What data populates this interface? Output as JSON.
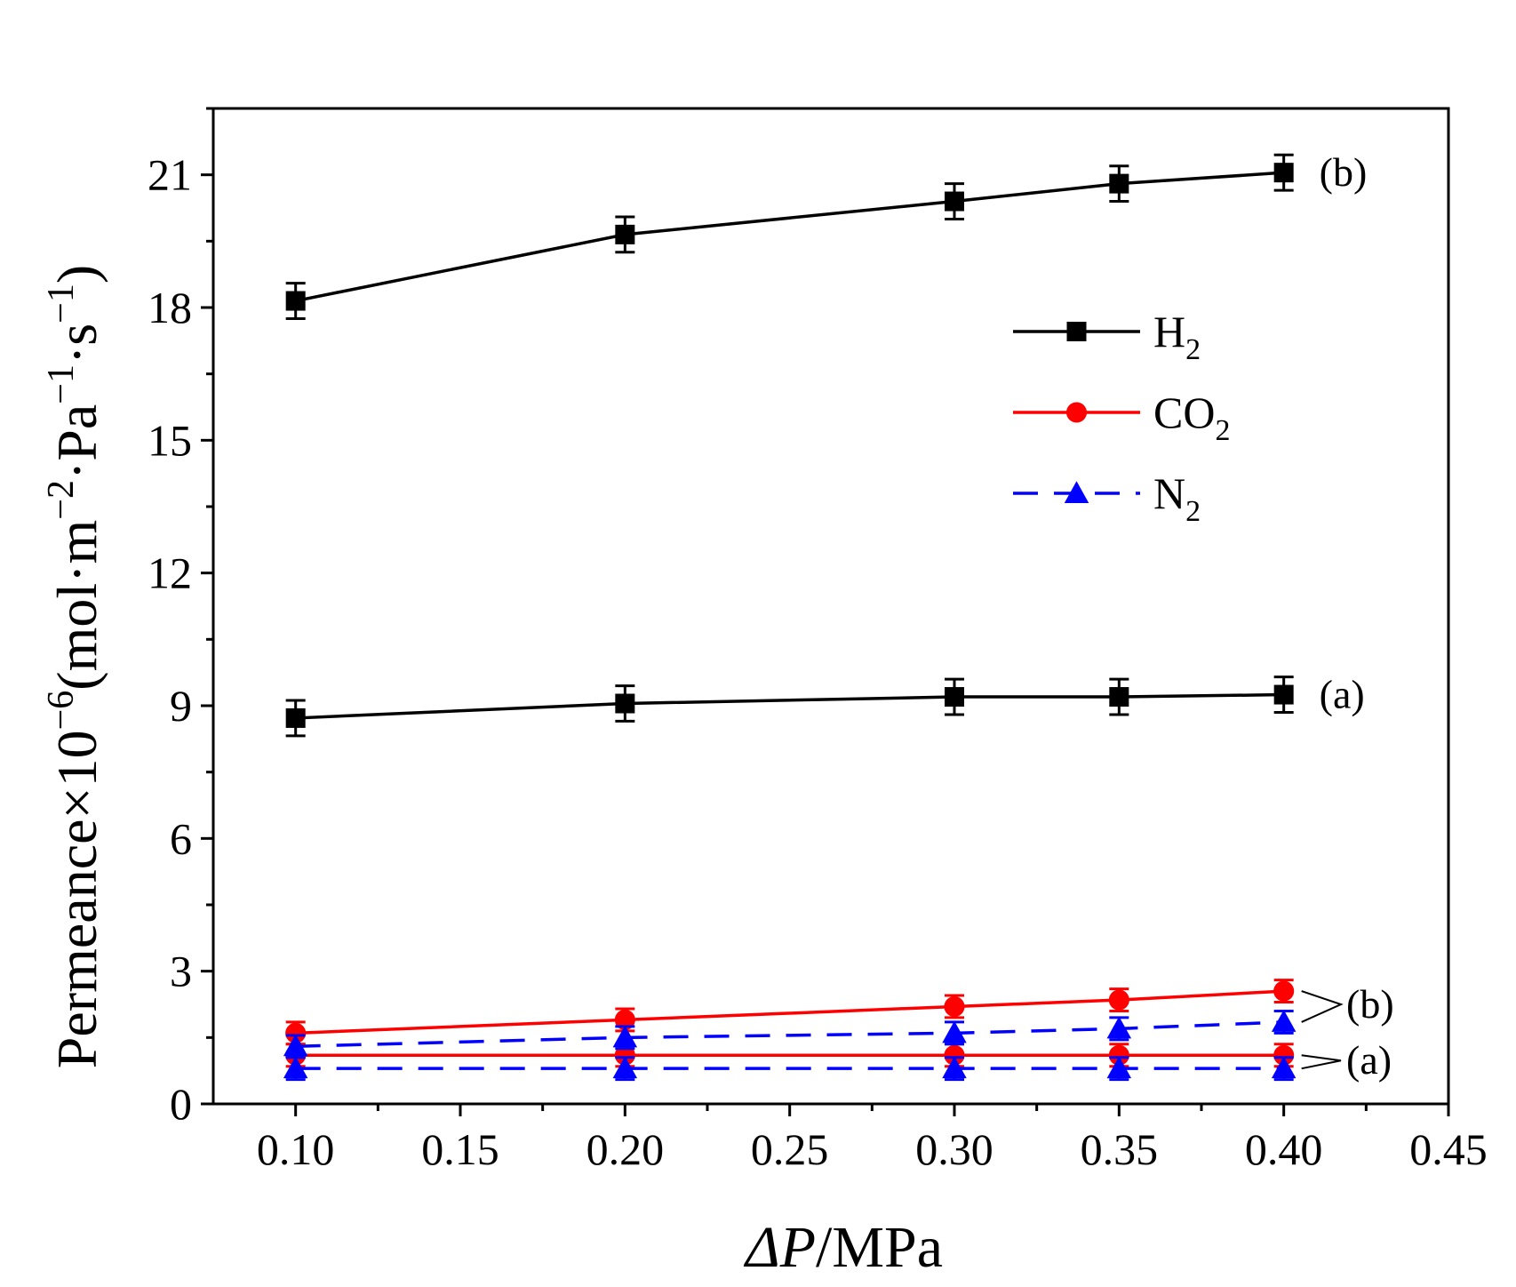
{
  "chart_data": {
    "type": "line",
    "xlabel": {
      "prefix": "ΔP",
      "suffix": "/MPa"
    },
    "ylabel": {
      "main": "Permeance×10",
      "exp1": "−6",
      "mid1": "(mol·m",
      "exp2": "−2",
      "mid2": "·Pa",
      "exp3": "−1",
      "mid3": "·s",
      "exp4": "−1",
      "end": ")"
    },
    "xlim": [
      0.075,
      0.45
    ],
    "ylim": [
      0,
      22.5
    ],
    "xticks": [
      "0.10",
      "0.15",
      "0.20",
      "0.25",
      "0.30",
      "0.35",
      "0.40",
      "0.45"
    ],
    "xtick_values": [
      0.1,
      0.15,
      0.2,
      0.25,
      0.3,
      0.35,
      0.4,
      0.45
    ],
    "yticks": [
      "0",
      "3",
      "6",
      "9",
      "12",
      "15",
      "18",
      "21"
    ],
    "ytick_values": [
      0,
      3,
      6,
      9,
      12,
      15,
      18,
      21
    ],
    "x": [
      0.1,
      0.2,
      0.3,
      0.35,
      0.4
    ],
    "legend": {
      "placement": "upper-right",
      "entries": [
        {
          "base": "H",
          "sub": "2",
          "color": "#000000",
          "marker": "square",
          "dash": "solid"
        },
        {
          "base": "CO",
          "sub": "2",
          "color": "#ff0000",
          "marker": "circle",
          "dash": "solid"
        },
        {
          "base": "N",
          "sub": "2",
          "color": "#0000ff",
          "marker": "triangle",
          "dash": "dashed"
        }
      ]
    },
    "series": [
      {
        "gas": "H2",
        "group": "(b)",
        "color": "#000000",
        "marker": "square",
        "dash": "solid",
        "values": [
          18.15,
          19.65,
          20.4,
          20.8,
          21.05
        ],
        "error": [
          0.4,
          0.4,
          0.4,
          0.4,
          0.4
        ]
      },
      {
        "gas": "H2",
        "group": "(a)",
        "color": "#000000",
        "marker": "square",
        "dash": "solid",
        "values": [
          8.72,
          9.05,
          9.2,
          9.2,
          9.25
        ],
        "error": [
          0.4,
          0.4,
          0.4,
          0.4,
          0.4
        ]
      },
      {
        "gas": "CO2",
        "group": "(b)",
        "color": "#ff0000",
        "marker": "circle",
        "dash": "solid",
        "values": [
          1.6,
          1.9,
          2.2,
          2.35,
          2.55
        ],
        "error": [
          0.25,
          0.25,
          0.25,
          0.25,
          0.25
        ]
      },
      {
        "gas": "CO2",
        "group": "(a)",
        "color": "#ff0000",
        "marker": "circle",
        "dash": "solid",
        "values": [
          1.1,
          1.1,
          1.1,
          1.1,
          1.1
        ],
        "error": [
          0.25,
          0.25,
          0.25,
          0.25,
          0.25
        ]
      },
      {
        "gas": "N2",
        "group": "(b)",
        "color": "#0000ff",
        "marker": "triangle",
        "dash": "dashed",
        "values": [
          1.3,
          1.5,
          1.6,
          1.7,
          1.85
        ],
        "error": [
          0.25,
          0.25,
          0.25,
          0.25,
          0.25
        ]
      },
      {
        "gas": "N2",
        "group": "(a)",
        "color": "#0000ff",
        "marker": "triangle",
        "dash": "dashed",
        "values": [
          0.8,
          0.8,
          0.8,
          0.8,
          0.8
        ],
        "error": [
          0.25,
          0.25,
          0.25,
          0.25,
          0.25
        ]
      }
    ],
    "annotations": [
      {
        "text": "(b)",
        "target": "H2 (b)"
      },
      {
        "text": "(a)",
        "target": "H2 (a)"
      },
      {
        "text": "(b)",
        "target": "CO2/N2 (b)"
      },
      {
        "text": "(a)",
        "target": "CO2/N2 (a)"
      }
    ]
  }
}
